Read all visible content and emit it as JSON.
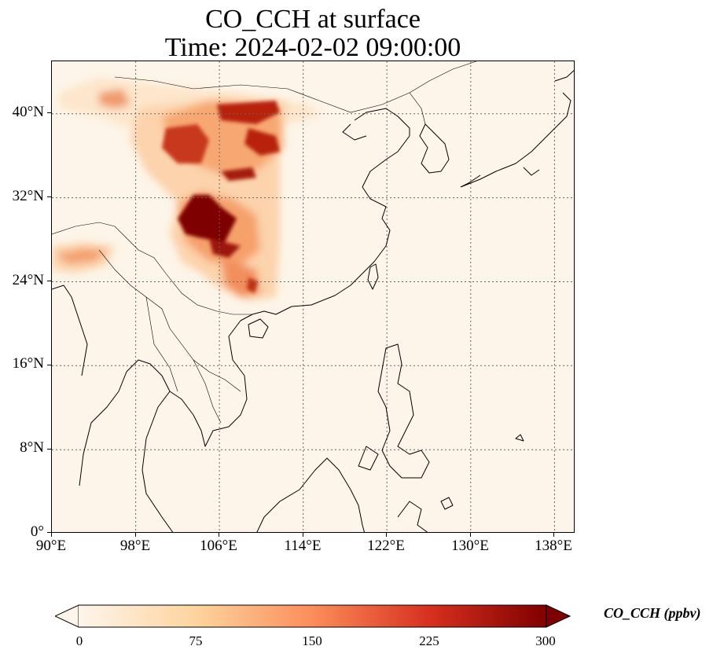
{
  "title_line1": "CO_CCH at surface",
  "title_line2": "Time: 2024-02-02 09:00:00",
  "map": {
    "lon_range": [
      90,
      140
    ],
    "lat_range": [
      0,
      45
    ],
    "lat_ticks": [
      {
        "value": 40,
        "label": "40°N"
      },
      {
        "value": 32,
        "label": "32°N"
      },
      {
        "value": 24,
        "label": "24°N"
      },
      {
        "value": 16,
        "label": "16°N"
      },
      {
        "value": 8,
        "label": "8°N"
      },
      {
        "value": 0,
        "label": "0°"
      }
    ],
    "lon_ticks": [
      {
        "value": 90,
        "label": "90°E"
      },
      {
        "value": 98,
        "label": "98°E"
      },
      {
        "value": 106,
        "label": "106°E"
      },
      {
        "value": 114,
        "label": "114°E"
      },
      {
        "value": 122,
        "label": "122°E"
      },
      {
        "value": 130,
        "label": "130°E"
      },
      {
        "value": 138,
        "label": "138°E"
      }
    ],
    "gridlines": true,
    "plume_colors": {
      "background": "#fdf5e9",
      "low": "#fde3c4",
      "mid": "#f8a86e",
      "high": "#d9471c",
      "very_high": "#7f0000"
    }
  },
  "colorbar": {
    "label": "CO_CCH (ppbv)",
    "min": 0,
    "max": 300,
    "extend": "both",
    "ticks": [
      "0",
      "75",
      "150",
      "225",
      "300"
    ],
    "colors": [
      "#fff5eb",
      "#fdd49e",
      "#fc8d59",
      "#d7301f",
      "#7f0000"
    ]
  }
}
